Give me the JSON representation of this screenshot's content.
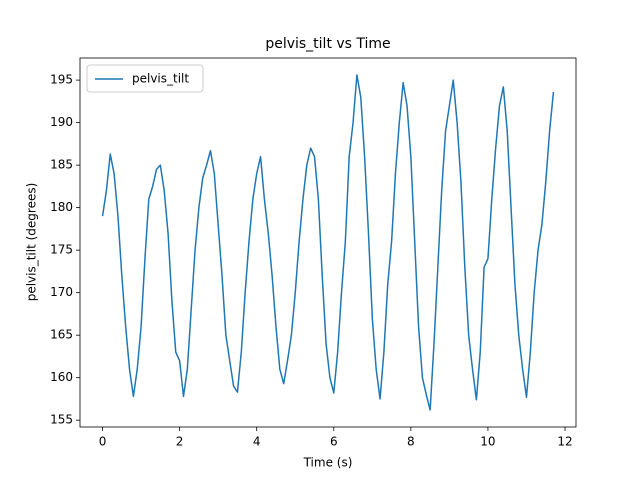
{
  "chart_data": {
    "type": "line",
    "title": "pelvis_tilt vs Time",
    "x_label": "Time (s)",
    "y_label": "pelvis_tilt (degrees)",
    "x": [
      0,
      0.1,
      0.2,
      0.3,
      0.4,
      0.5,
      0.6,
      0.7,
      0.8,
      0.9,
      1,
      1.1,
      1.2,
      1.3,
      1.4,
      1.5,
      1.6,
      1.7,
      1.8,
      1.9,
      2,
      2.1,
      2.2,
      2.3,
      2.4,
      2.5,
      2.6,
      2.7,
      2.8,
      2.9,
      3,
      3.1,
      3.2,
      3.3,
      3.4,
      3.5,
      3.6,
      3.7,
      3.8,
      3.9,
      4,
      4.1,
      4.2,
      4.3,
      4.4,
      4.5,
      4.6,
      4.7,
      4.8,
      4.9,
      5,
      5.1,
      5.2,
      5.3,
      5.4,
      5.5,
      5.6,
      5.7,
      5.8,
      5.9,
      6,
      6.1,
      6.2,
      6.3,
      6.4,
      6.5,
      6.6,
      6.7,
      6.8,
      6.9,
      7,
      7.1,
      7.2,
      7.3,
      7.4,
      7.5,
      7.6,
      7.7,
      7.8,
      7.9,
      8,
      8.1,
      8.2,
      8.3,
      8.4,
      8.5,
      8.6,
      8.7,
      8.8,
      8.9,
      9,
      9.1,
      9.2,
      9.3,
      9.4,
      9.5,
      9.6,
      9.7,
      9.8,
      9.9,
      10,
      10.1,
      10.2,
      10.3,
      10.4,
      10.5,
      10.6,
      10.7,
      10.8,
      10.9,
      11,
      11.1,
      11.2,
      11.3,
      11.4,
      11.5,
      11.6,
      11.7
    ],
    "series": [
      {
        "name": "pelvis_tilt",
        "color": "#1f77b4",
        "values": [
          179,
          182,
          186.3,
          184,
          179,
          172,
          166,
          161,
          157.8,
          161,
          166,
          174,
          181,
          182.5,
          184.5,
          185,
          182,
          177,
          169,
          163,
          162,
          157.8,
          161,
          168,
          175,
          180,
          183.5,
          185,
          186.7,
          184,
          178,
          172,
          165,
          162,
          159,
          158.3,
          163,
          170,
          176,
          181,
          184,
          186,
          181,
          177,
          172,
          166,
          161,
          159.3,
          162,
          165,
          170,
          176,
          181,
          185,
          187,
          186,
          181,
          172,
          164,
          160,
          158.2,
          163,
          170,
          176,
          186,
          190,
          195.6,
          193,
          186,
          177,
          167,
          161,
          157.5,
          163,
          171,
          176,
          184,
          190,
          194.7,
          192,
          186,
          176,
          166,
          160,
          158,
          156.2,
          164,
          173,
          182,
          189,
          192,
          195,
          190,
          183,
          173,
          165,
          161,
          157.4,
          163,
          173,
          174,
          181,
          187,
          192,
          194.2,
          189,
          180,
          171,
          165,
          161,
          157.7,
          163,
          170,
          175,
          178,
          183,
          189,
          193.6
        ]
      }
    ],
    "xlim": [
      -0.585,
      12.285
    ],
    "xticks": [
      0,
      2,
      4,
      6,
      8,
      10,
      12
    ],
    "ylim": [
      154.2,
      197.6
    ],
    "yticks": [
      155,
      160,
      165,
      170,
      175,
      180,
      185,
      190,
      195
    ],
    "legend": "upper left"
  }
}
